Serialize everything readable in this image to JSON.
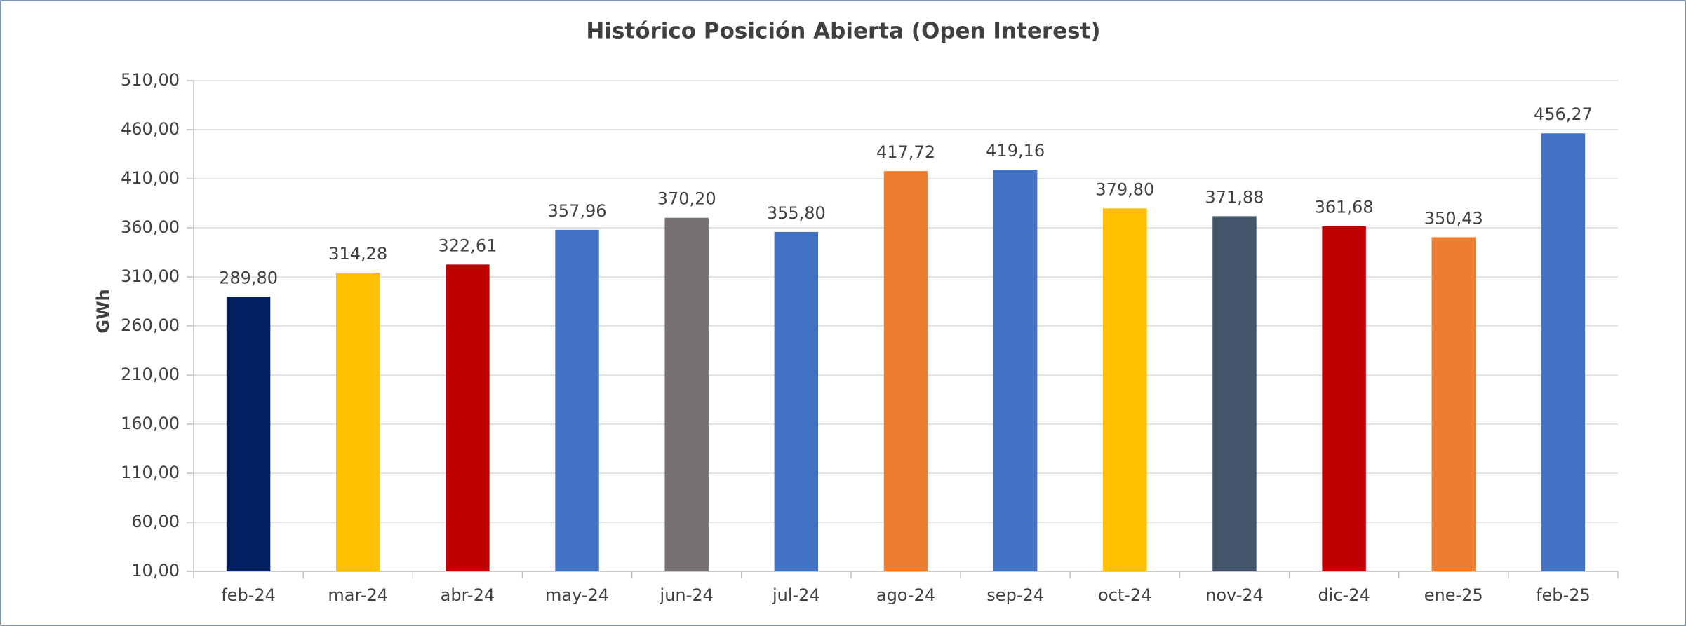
{
  "chart_data": {
    "type": "bar",
    "title": "Histórico Posición Abierta (Open Interest)",
    "y_label": "GWh",
    "categories": [
      "feb-24",
      "mar-24",
      "abr-24",
      "may-24",
      "jun-24",
      "jul-24",
      "ago-24",
      "sep-24",
      "oct-24",
      "nov-24",
      "dic-24",
      "ene-25",
      "feb-25"
    ],
    "values": [
      289.8,
      314.28,
      322.61,
      357.96,
      370.2,
      355.8,
      417.72,
      419.16,
      379.8,
      371.88,
      361.68,
      350.43,
      456.27
    ],
    "value_labels": [
      "289,80",
      "314,28",
      "322,61",
      "357,96",
      "370,20",
      "355,80",
      "417,72",
      "419,16",
      "379,80",
      "371,88",
      "361,68",
      "350,43",
      "456,27"
    ],
    "colors": [
      "#002060",
      "#ffc000",
      "#c00000",
      "#4472c4",
      "#767171",
      "#4472c4",
      "#ed7d31",
      "#4472c4",
      "#ffc000",
      "#44546a",
      "#c00000",
      "#ed7d31",
      "#4472c4"
    ],
    "ylim": [
      10,
      510
    ],
    "yticks": [
      {
        "value": 10,
        "label": "10,00"
      },
      {
        "value": 60,
        "label": "60,00"
      },
      {
        "value": 110,
        "label": "110,00"
      },
      {
        "value": 160,
        "label": "160,00"
      },
      {
        "value": 210,
        "label": "210,00"
      },
      {
        "value": 260,
        "label": "260,00"
      },
      {
        "value": 310,
        "label": "310,00"
      },
      {
        "value": 360,
        "label": "360,00"
      },
      {
        "value": 410,
        "label": "410,00"
      },
      {
        "value": 460,
        "label": "460,00"
      },
      {
        "value": 510,
        "label": "510,00"
      }
    ],
    "grid": true
  }
}
